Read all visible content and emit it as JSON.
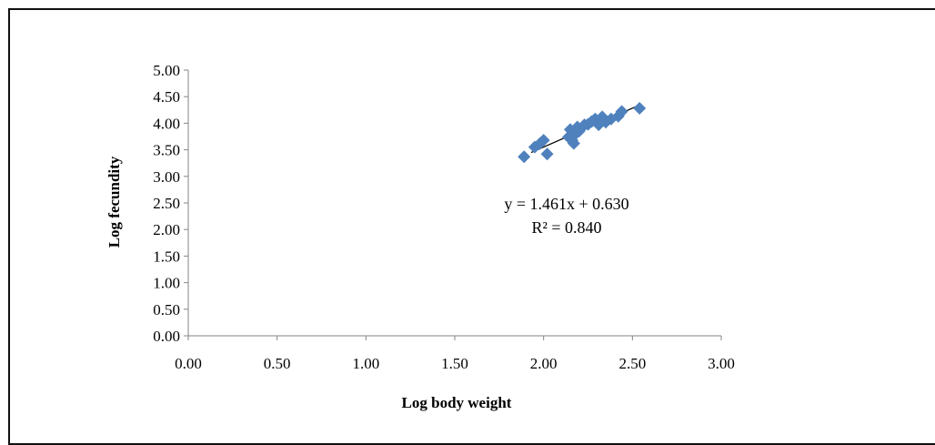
{
  "chart_data": {
    "type": "scatter",
    "title": "",
    "xlabel": "Log body weight",
    "ylabel": "Log fecundity",
    "xlim": [
      0,
      3
    ],
    "ylim": [
      0,
      5
    ],
    "x_ticks": [
      "0.00",
      "0.50",
      "1.00",
      "1.50",
      "2.00",
      "2.50",
      "3.00"
    ],
    "y_ticks": [
      "0.00",
      "0.50",
      "1.00",
      "1.50",
      "2.00",
      "2.50",
      "3.00",
      "3.50",
      "4.00",
      "4.50",
      "5.00"
    ],
    "grid": false,
    "marker_color": "#4f81bd",
    "series": [
      {
        "marker": "diamond",
        "x": [
          1.89,
          1.95,
          1.98,
          2.0,
          2.02,
          2.14,
          2.15,
          2.16,
          2.17,
          2.18,
          2.19,
          2.2,
          2.21,
          2.23,
          2.25,
          2.27,
          2.29,
          2.31,
          2.33,
          2.35,
          2.38,
          2.42,
          2.44,
          2.54
        ],
        "y": [
          3.37,
          3.55,
          3.62,
          3.68,
          3.42,
          3.74,
          3.88,
          3.68,
          3.62,
          3.8,
          3.93,
          3.85,
          3.9,
          3.97,
          3.98,
          4.03,
          4.08,
          3.97,
          4.12,
          4.02,
          4.08,
          4.13,
          4.22,
          4.28
        ]
      }
    ],
    "trendline": {
      "type": "linear",
      "slope": 1.461,
      "intercept": 0.63,
      "x_range": [
        1.93,
        2.53
      ],
      "color": "#000000"
    },
    "annotations": [
      {
        "text": "y = 1.461x + 0.630"
      },
      {
        "text": "R² = 0.840"
      }
    ]
  }
}
